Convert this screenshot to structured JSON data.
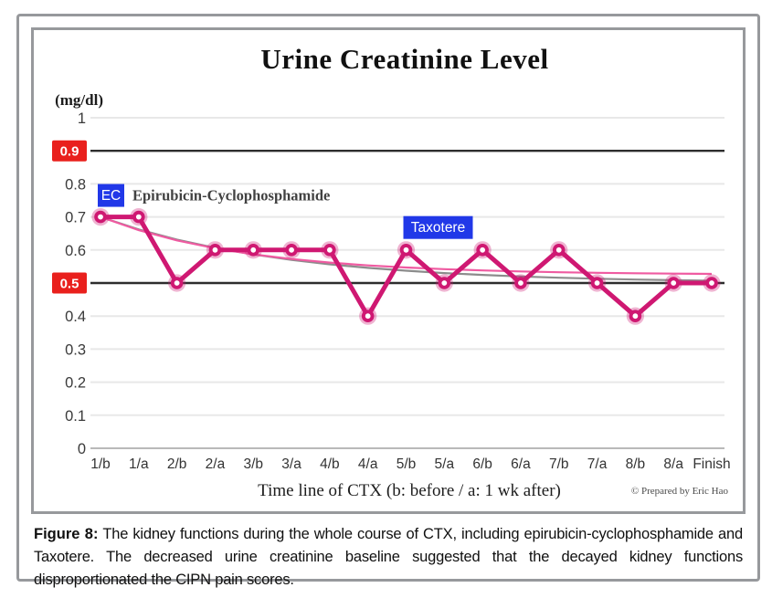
{
  "caption": {
    "label": "Figure 8:",
    "text": "The kidney functions during the whole course of CTX, including epirubicin-cyclophosphamide and Taxotere. The decreased urine creatinine baseline suggested that the decayed kidney functions disproportionated the CIPN pain scores."
  },
  "chart_data": {
    "type": "line",
    "title": "Urine Creatinine Level",
    "y_unit_label": "(mg/dl)",
    "xlabel": "Time line of CTX (b: before / a: 1 wk after)",
    "credit": "© Prepared by Eric Hao",
    "categories": [
      "1/b",
      "1/a",
      "2/b",
      "2/a",
      "3/b",
      "3/a",
      "4/b",
      "4/a",
      "5/b",
      "5/a",
      "6/b",
      "6/a",
      "7/b",
      "7/a",
      "8/b",
      "8/a",
      "Finish"
    ],
    "series": [
      {
        "name": "urine-creatinine",
        "color": "#cf1872",
        "values": [
          0.7,
          0.7,
          0.5,
          0.6,
          0.6,
          0.6,
          0.6,
          0.4,
          0.6,
          0.5,
          0.6,
          0.5,
          0.6,
          0.5,
          0.4,
          0.5,
          0.5
        ]
      }
    ],
    "trendlines": [
      {
        "name": "trend-gray",
        "color": "#8c8c8c",
        "start": 0.7,
        "end": 0.5,
        "k": 0.21
      },
      {
        "name": "trend-pink",
        "color": "#ef5ba1",
        "start": 0.7,
        "end": 0.525,
        "k": 0.26
      }
    ],
    "ylim": [
      0,
      1
    ],
    "ytick_values": [
      1,
      0.9,
      0.8,
      0.7,
      0.6,
      0.5,
      0.4,
      0.3,
      0.2,
      0.1,
      0
    ],
    "ytick_labels": [
      "1",
      "0.9",
      "0.8",
      "0.7",
      "0.6",
      "0.5",
      "0.4",
      "0.3",
      "0.2",
      "0.1",
      "0"
    ],
    "highlight_ticks": [
      0.9,
      0.5
    ],
    "highlight_color": "#e9201d",
    "grid": true,
    "legend": "none",
    "annotations": [
      {
        "badge": "EC",
        "badge_color": "#2138e8",
        "label": "Epirubicin-Cyclophosphamide",
        "x_index": 0,
        "y_value": 0.765
      },
      {
        "badge": "Taxotere",
        "badge_color": "#2138e8",
        "label": "",
        "x_index": 8,
        "y_value": 0.668
      }
    ]
  }
}
